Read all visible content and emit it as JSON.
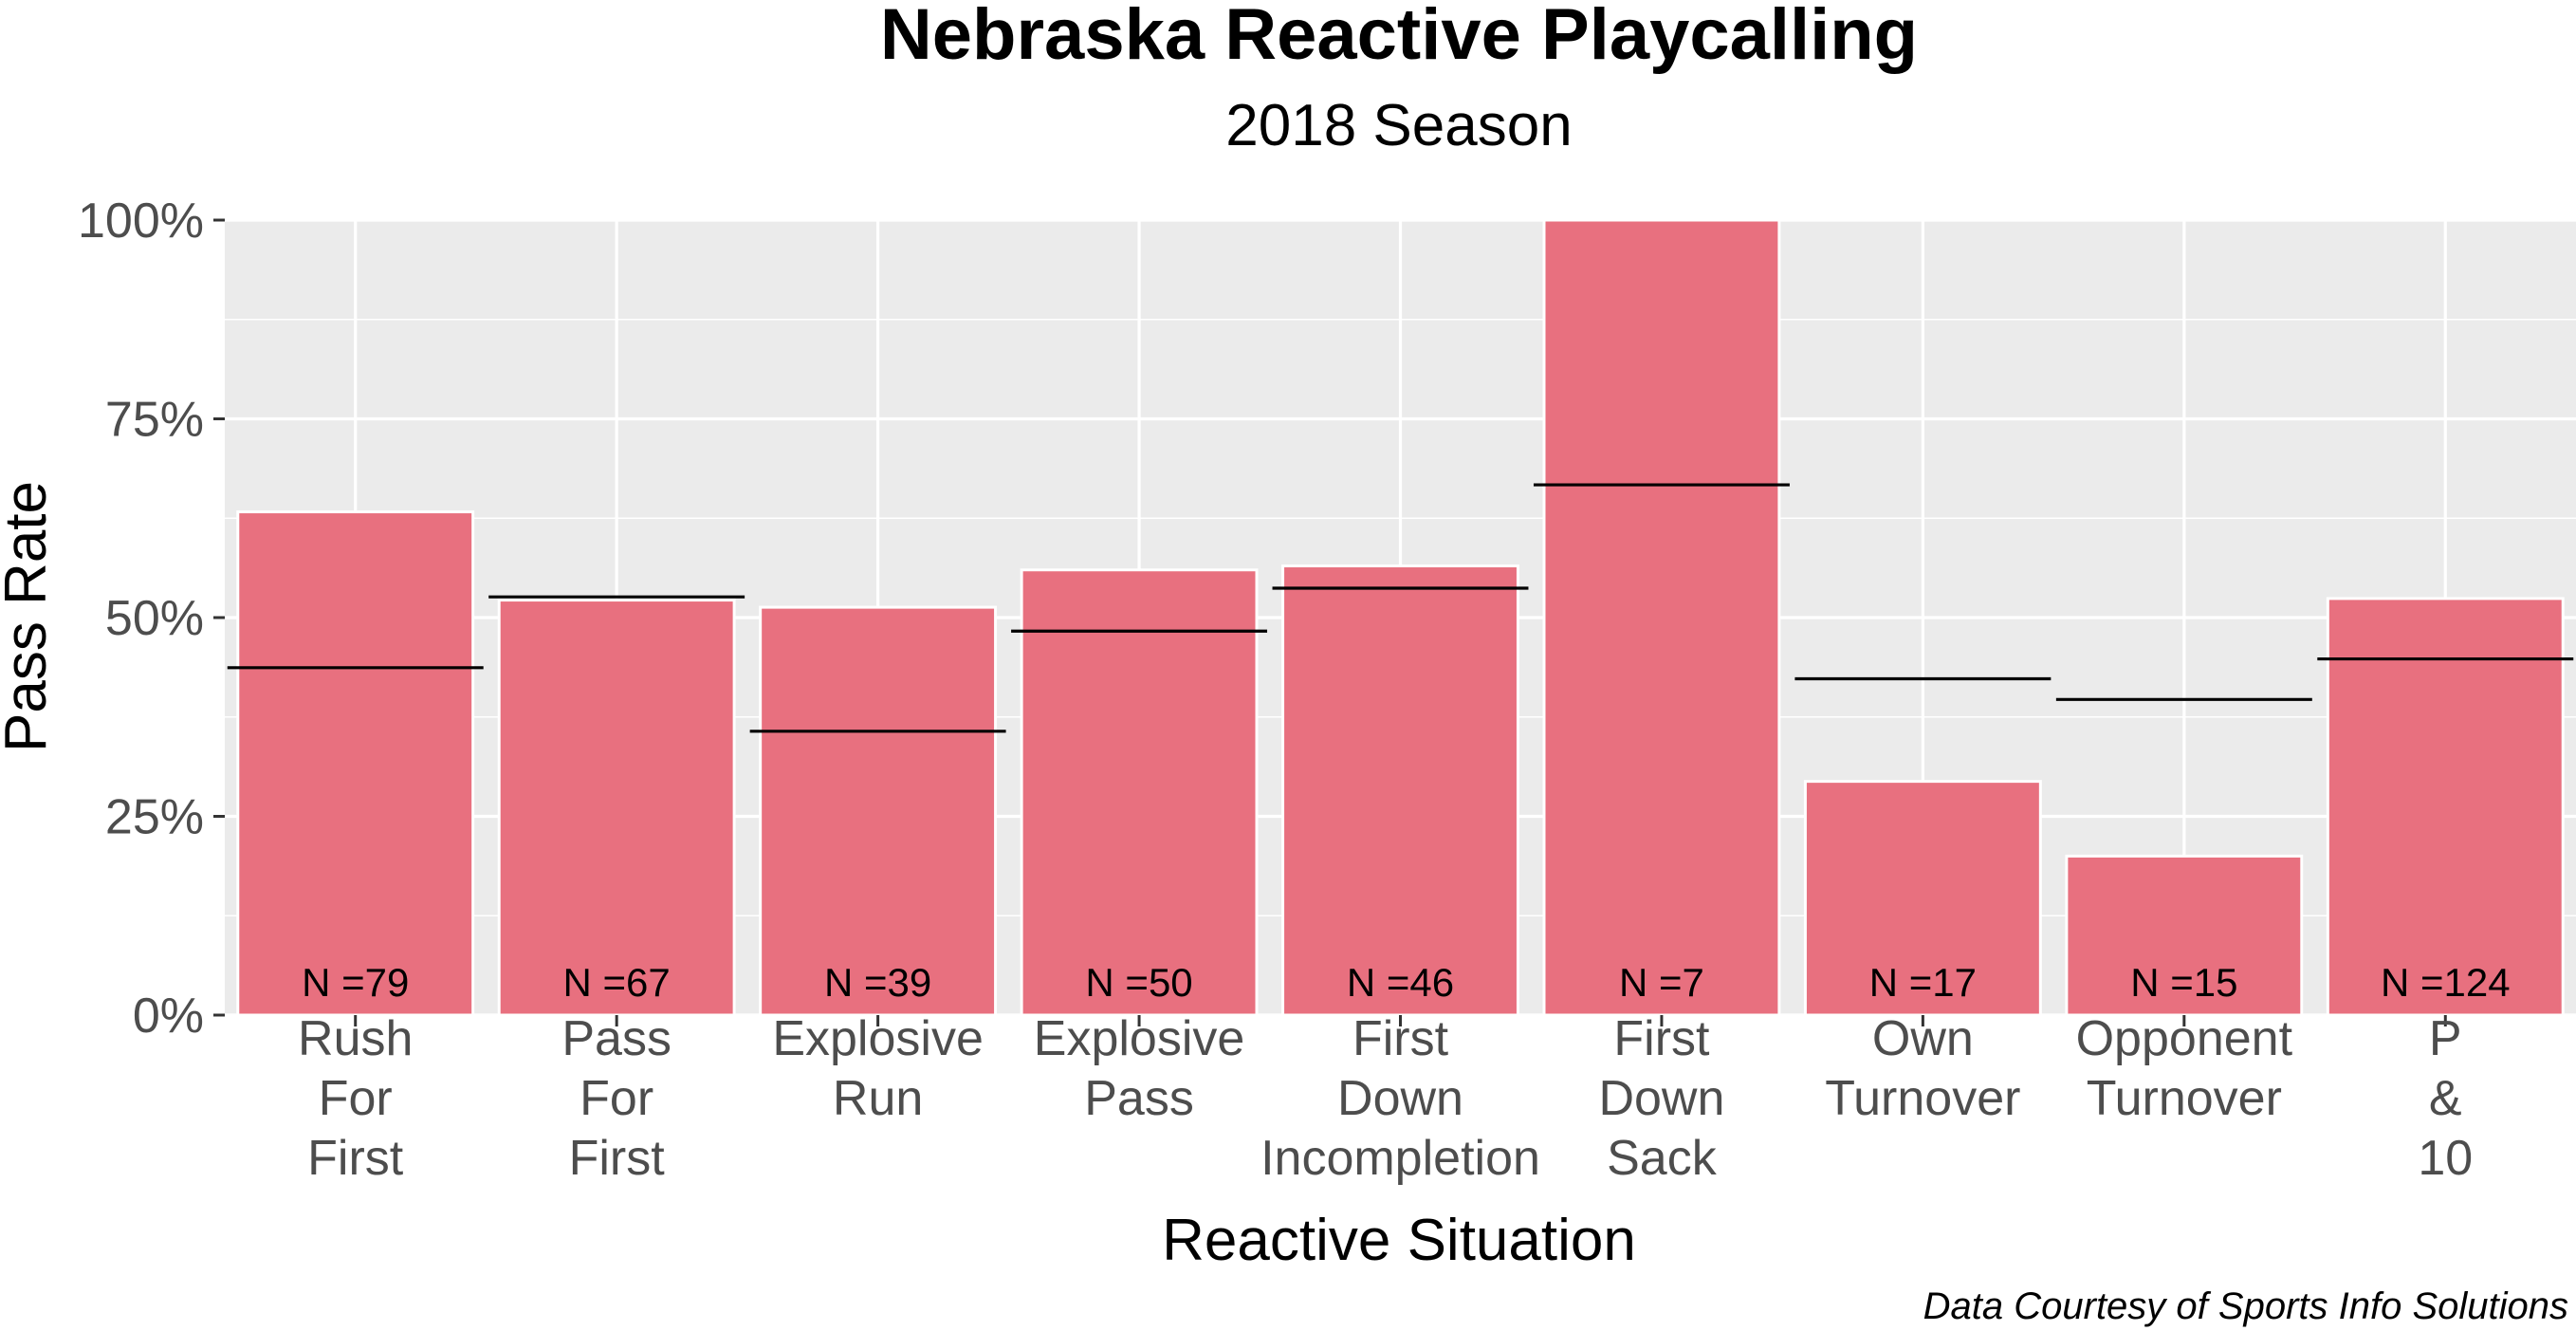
{
  "chart_data": {
    "type": "bar",
    "title": "Nebraska Reactive Playcalling",
    "subtitle": "2018 Season",
    "xlabel": "Reactive Situation",
    "ylabel": "Pass Rate",
    "caption": "Data Courtesy of Sports Info Solutions",
    "ylim": [
      0,
      1
    ],
    "y_ticks": [
      0,
      0.25,
      0.5,
      0.75,
      1.0
    ],
    "y_tick_labels": [
      "0%",
      "25%",
      "50%",
      "75%",
      "100%"
    ],
    "grid": true,
    "bar_color": "#e8707f",
    "panel_background": "#ebebeb",
    "categories": [
      [
        "Rush",
        "For",
        "First"
      ],
      [
        "Pass",
        "For",
        "First"
      ],
      [
        "Explosive",
        "Run"
      ],
      [
        "Explosive",
        "Pass"
      ],
      [
        "First",
        "Down",
        "Incompletion"
      ],
      [
        "First",
        "Down",
        "Sack"
      ],
      [
        "Own",
        "Turnover"
      ],
      [
        "Opponent",
        "Turnover"
      ],
      [
        "P",
        "&",
        "10"
      ]
    ],
    "values": [
      0.633,
      0.522,
      0.513,
      0.56,
      0.565,
      1.0,
      0.294,
      0.2,
      0.524
    ],
    "reference_values": [
      0.437,
      0.526,
      0.357,
      0.483,
      0.537,
      0.667,
      0.423,
      0.397,
      0.448
    ],
    "n_labels": [
      "N =79",
      "N =67",
      "N =39",
      "N =50",
      "N =46",
      "N =7",
      "N =17",
      "N =15",
      "N =124"
    ]
  }
}
